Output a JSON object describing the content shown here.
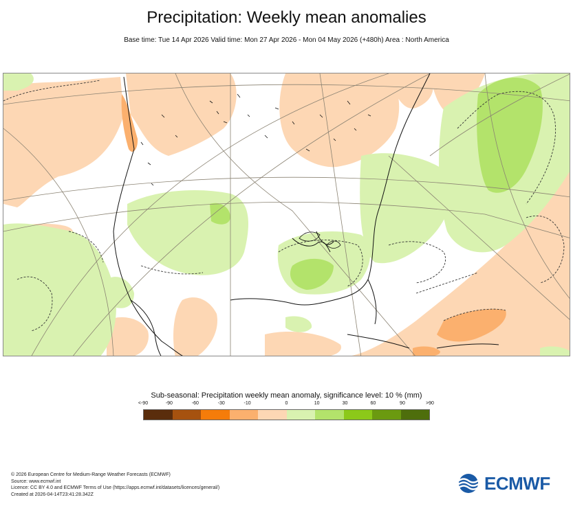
{
  "title": "Precipitation: Weekly mean anomalies",
  "subtitle": "Base time: Tue 14 Apr 2026 Valid time: Mon 27 Apr 2026 - Mon 04 May 2026 (+480h) Area : North America",
  "legend": {
    "title": "Sub-seasonal: Precipitation weekly mean anomaly, significance level: 10 % (mm)",
    "ticks": [
      "<-90",
      "-90",
      "-60",
      "-30",
      "-10",
      "0",
      "10",
      "30",
      "60",
      "90",
      ">90"
    ],
    "colors": [
      "#5a2d0c",
      "#a6520f",
      "#f57c0a",
      "#fbb06e",
      "#fdd7b4",
      "#ffffff",
      "#d9f2b0",
      "#b3e36b",
      "#8cc919",
      "#6b9a10",
      "#4e6e0c"
    ]
  },
  "footer": {
    "line1": "© 2026 European Centre for Medium-Range Weather Forecasts (ECMWF)",
    "line2": "Source: www.ecmwf.int",
    "line3": "Licence: CC BY 4.0 and ECMWF Terms of Use (https://apps.ecmwf.int/datasets/licences/general/)",
    "line4": "Created at 2026-04-14T23:41:28.342Z"
  },
  "logo": {
    "text": "ECMWF",
    "icon": "ecmwf-logo-icon",
    "color": "#1a5aa6"
  },
  "map": {
    "region": "North America",
    "colors": {
      "dry_light": "#fdd7b4",
      "dry_medium": "#fbb06e",
      "wet_light": "#d9f2b0",
      "wet_medium": "#b3e36b"
    }
  }
}
